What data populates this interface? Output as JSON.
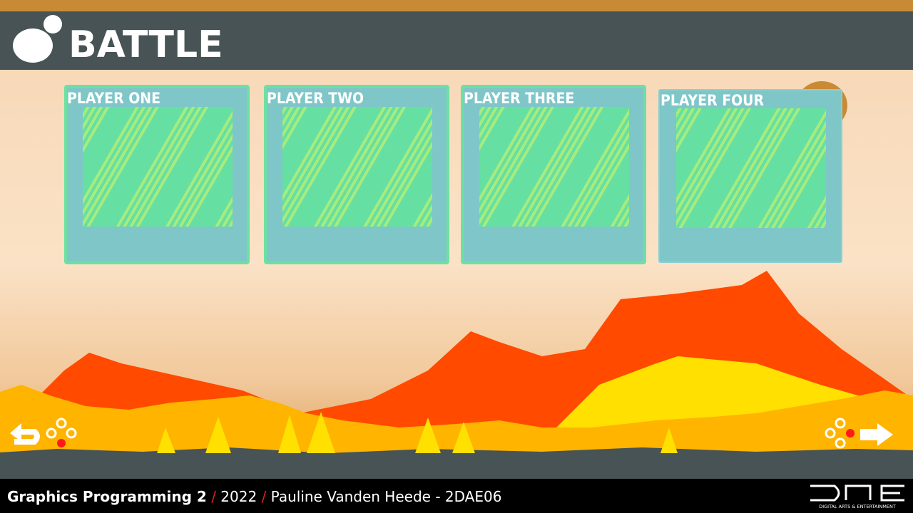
{
  "header": {
    "title": "BATTLE"
  },
  "players": [
    {
      "label": "PLAYER ONE"
    },
    {
      "label": "PLAYER TWO"
    },
    {
      "label": "PLAYER THREE"
    },
    {
      "label": "PLAYER FOUR"
    }
  ],
  "footer": {
    "parts": [
      "Graphics Programming 2",
      "/",
      "2022",
      "/",
      "Pauline Vanden Heede - 2DAE06"
    ],
    "logo_caption": "DIGITAL ARTS & ENTERTAINMENT"
  }
}
